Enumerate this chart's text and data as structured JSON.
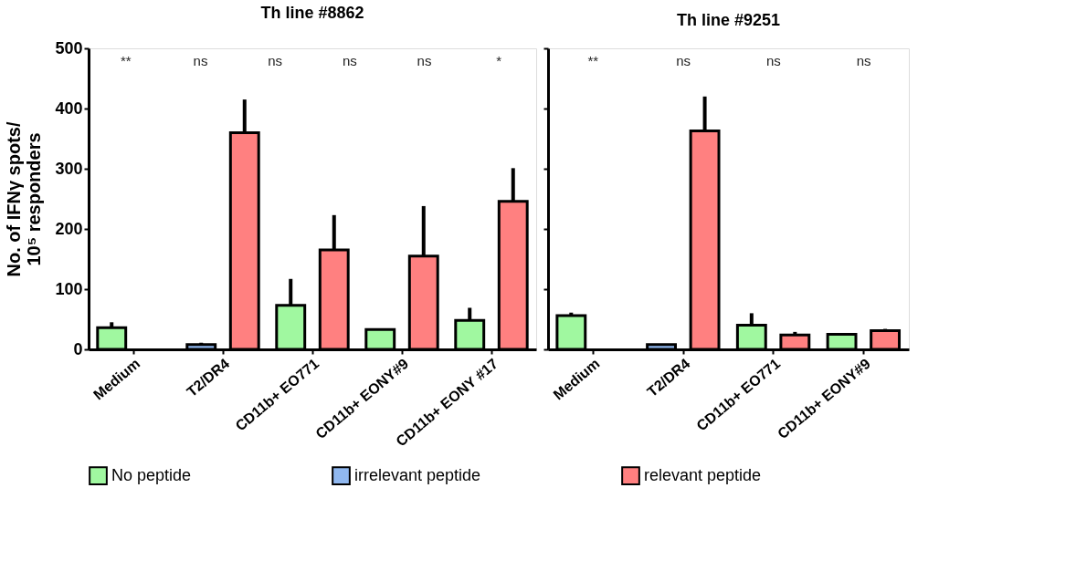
{
  "chart_data": [
    {
      "type": "bar",
      "title": "Th line #8862",
      "ylabel": "No. of IFNγ spots/\n10⁵ responders",
      "categories": [
        "Medium",
        "T2/DR4",
        "CD11b+ EO771",
        "CD11b+ EONY#9",
        "CD11b+ EONY #17"
      ],
      "series": [
        {
          "name": "No peptide",
          "color": "#a0f8a0",
          "values": [
            36,
            null,
            73,
            33,
            48
          ],
          "errors": [
            [
              36,
              45
            ],
            null,
            [
              73,
              117
            ],
            null,
            [
              48,
              69
            ]
          ]
        },
        {
          "name": "irrelevant peptide",
          "color": "#90b8f0",
          "values": [
            null,
            8,
            null,
            null,
            null
          ],
          "errors": [
            null,
            [
              8,
              11
            ],
            null,
            null,
            null
          ]
        },
        {
          "name": "relevant peptide",
          "color": "#ff8080",
          "values": [
            null,
            360,
            165,
            155,
            246
          ],
          "errors": [
            null,
            [
              360,
              415
            ],
            [
              165,
              223
            ],
            [
              155,
              238
            ],
            [
              246,
              301
            ]
          ]
        }
      ],
      "ylim": [
        0,
        500
      ],
      "yticks": [
        0,
        100,
        200,
        300,
        400,
        500
      ],
      "grid": false,
      "legend": "bottom",
      "annotations": [
        "**",
        "ns",
        "ns",
        "ns",
        "ns",
        "*"
      ]
    },
    {
      "type": "bar",
      "title": "Th line #9251",
      "categories": [
        "Medium",
        "T2/DR4",
        "CD11b+ EO771",
        "CD11b+ EONY#9"
      ],
      "series": [
        {
          "name": "No peptide",
          "color": "#a0f8a0",
          "values": [
            56,
            null,
            40,
            25
          ],
          "errors": [
            [
              56,
              61
            ],
            null,
            [
              40,
              60
            ],
            null
          ]
        },
        {
          "name": "irrelevant peptide",
          "color": "#90b8f0",
          "values": [
            null,
            8,
            null,
            null
          ],
          "errors": [
            null,
            null,
            null,
            null
          ]
        },
        {
          "name": "relevant peptide",
          "color": "#ff8080",
          "values": [
            null,
            363,
            24,
            31
          ],
          "errors": [
            null,
            [
              363,
              420
            ],
            [
              24,
              29
            ],
            [
              31,
              34
            ]
          ]
        }
      ],
      "ylim": [
        0,
        500
      ],
      "yticks": [
        0,
        100,
        200,
        300,
        400,
        500
      ],
      "grid": false,
      "legend": "bottom",
      "tick_labels": "x",
      "annotations": [
        "**",
        "ns",
        "ns",
        "ns"
      ]
    }
  ]
}
